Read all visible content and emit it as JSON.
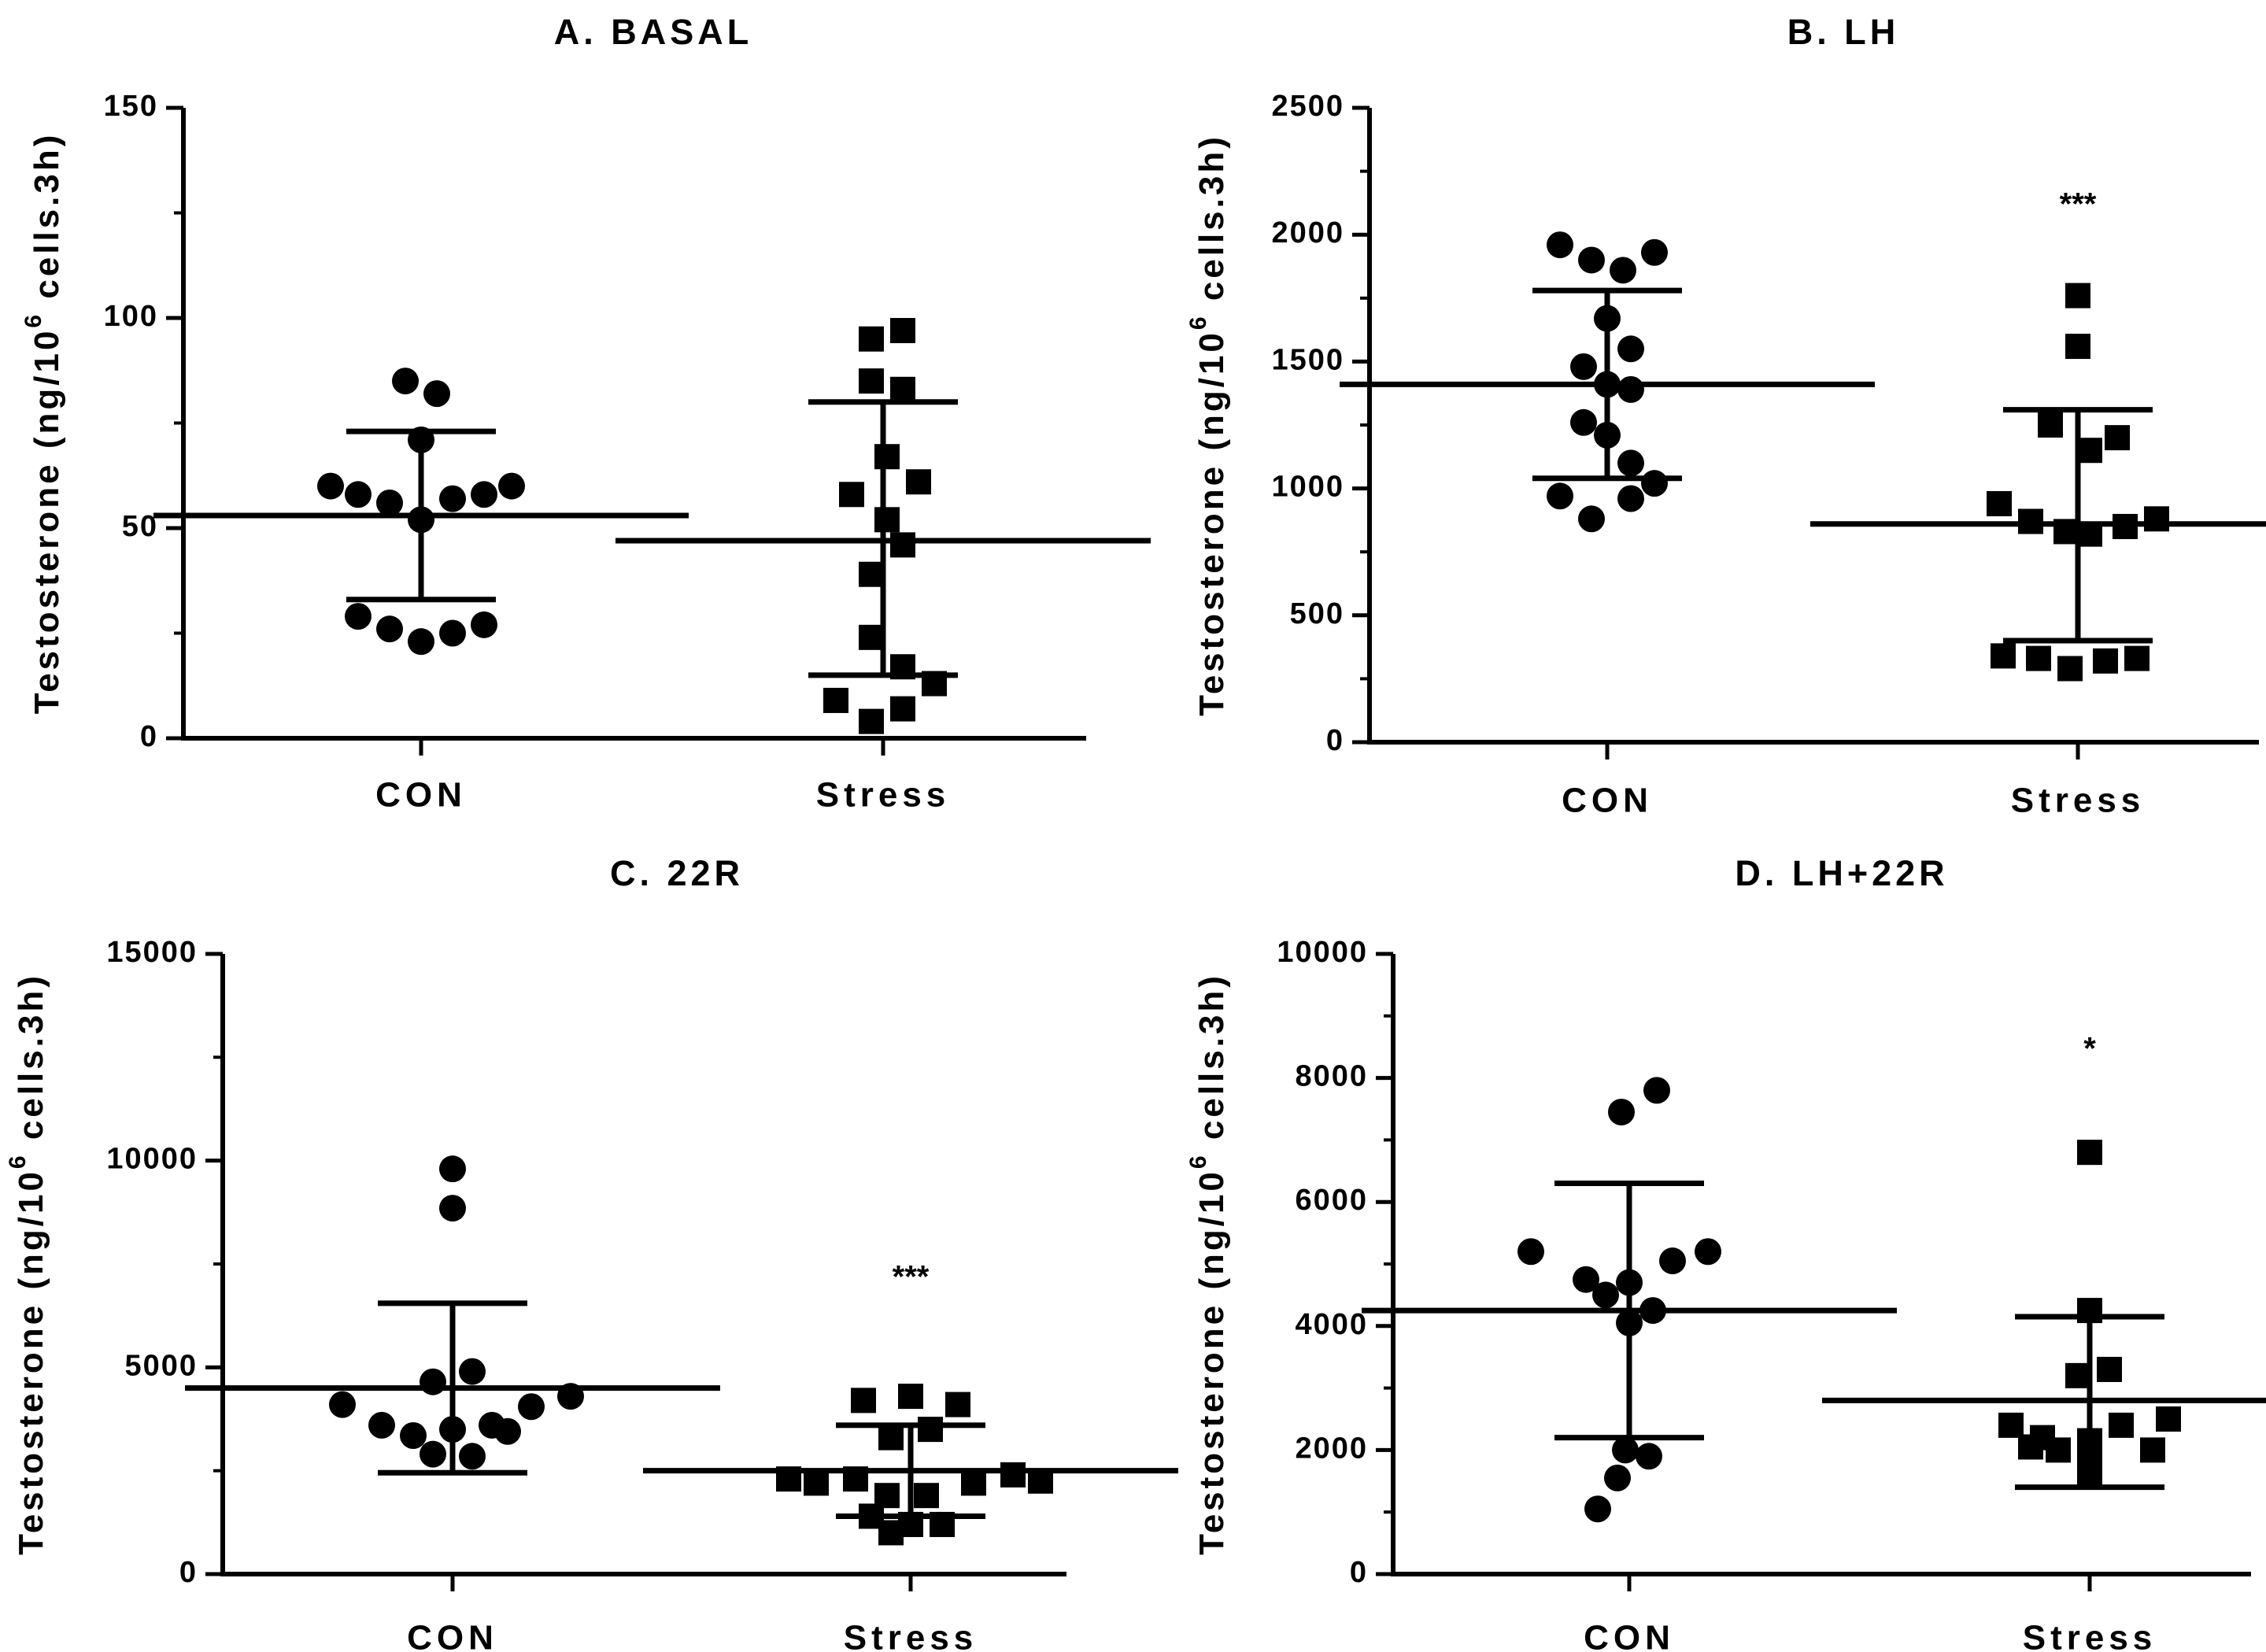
{
  "chart_data": [
    {
      "type": "scatter",
      "title": "A. BASAL",
      "ylabel": "Testosterone (ng/10^6 cells.3h)",
      "ylabel_parts": [
        "Testosterone (ng/10",
        "6",
        " cells.3h)"
      ],
      "categories": [
        "CON",
        "Stress"
      ],
      "ylim": [
        0,
        150
      ],
      "yticks": [
        0,
        50,
        100,
        150
      ],
      "yticklabels": [
        "0",
        "50",
        "100",
        "150"
      ],
      "significance": [
        "",
        ""
      ],
      "series": [
        {
          "name": "CON",
          "marker": "circle",
          "mean": 53,
          "sd": [
            33,
            73
          ],
          "values": [
            85,
            82,
            71,
            60,
            58,
            56,
            52,
            57,
            58,
            60,
            29,
            26,
            23,
            25,
            27
          ],
          "offsets": [
            -0.04,
            0.04,
            0.0,
            -0.23,
            -0.16,
            -0.08,
            0.0,
            0.08,
            0.16,
            0.23,
            -0.16,
            -0.08,
            0.0,
            0.08,
            0.16
          ]
        },
        {
          "name": "Stress",
          "marker": "square",
          "mean": 47,
          "sd": [
            15,
            80
          ],
          "values": [
            97,
            95,
            85,
            83,
            67,
            61,
            58,
            52,
            46,
            39,
            24,
            17,
            13,
            9,
            7,
            4
          ],
          "offsets": [
            0.05,
            -0.03,
            -0.03,
            0.05,
            0.01,
            0.09,
            -0.08,
            0.01,
            0.05,
            -0.03,
            -0.03,
            0.05,
            0.13,
            -0.12,
            0.05,
            -0.03
          ]
        }
      ]
    },
    {
      "type": "scatter",
      "title": "B. LH",
      "ylabel": "Testosterone (ng/10^6 cells.3h)",
      "ylabel_parts": [
        "Testosterone (ng/10",
        "6",
        " cells.3h)"
      ],
      "categories": [
        "CON",
        "Stress"
      ],
      "ylim": [
        0,
        2500
      ],
      "yticks": [
        0,
        500,
        1000,
        1500,
        2000,
        2500
      ],
      "yticklabels": [
        "0",
        "500",
        "1000",
        "1500",
        "2000",
        "2500"
      ],
      "significance": [
        "",
        "***"
      ],
      "series": [
        {
          "name": "CON",
          "marker": "circle",
          "mean": 1410,
          "sd": [
            1040,
            1780
          ],
          "values": [
            1960,
            1900,
            1860,
            1930,
            1670,
            1480,
            1550,
            1410,
            1390,
            1260,
            1210,
            1100,
            1020,
            970,
            960,
            880
          ],
          "offsets": [
            -0.12,
            -0.04,
            0.04,
            0.12,
            0.0,
            -0.06,
            0.06,
            0.0,
            0.06,
            -0.06,
            0.0,
            0.06,
            0.12,
            -0.12,
            0.06,
            -0.04
          ]
        },
        {
          "name": "Stress",
          "marker": "square",
          "mean": 860,
          "sd": [
            400,
            1310
          ],
          "values": [
            1760,
            1560,
            1250,
            1200,
            1150,
            940,
            870,
            830,
            820,
            850,
            880,
            340,
            330,
            290,
            320,
            330
          ],
          "offsets": [
            0.0,
            0.0,
            -0.07,
            0.1,
            0.03,
            -0.2,
            -0.12,
            -0.03,
            0.03,
            0.12,
            0.2,
            -0.19,
            -0.1,
            -0.02,
            0.07,
            0.15
          ]
        }
      ]
    },
    {
      "type": "scatter",
      "title": "C. 22R",
      "ylabel": "Testosterone (ng/10^6 cells.3h)",
      "ylabel_parts": [
        "Testosterone (ng/10",
        "6",
        " cells.3h)"
      ],
      "categories": [
        "CON",
        "Stress"
      ],
      "ylim": [
        0,
        15000
      ],
      "yticks": [
        0,
        5000,
        10000,
        15000
      ],
      "yticklabels": [
        "0",
        "5000",
        "10000",
        "15000"
      ],
      "significance": [
        "",
        "***"
      ],
      "series": [
        {
          "name": "CON",
          "marker": "circle",
          "mean": 4500,
          "sd": [
            2450,
            6550
          ],
          "values": [
            9800,
            8850,
            4900,
            4650,
            4300,
            4100,
            4050,
            3600,
            3500,
            3600,
            3450,
            3350,
            2900,
            2850
          ],
          "offsets": [
            0.0,
            0.0,
            0.05,
            -0.05,
            0.3,
            -0.28,
            0.2,
            -0.18,
            0.0,
            0.1,
            0.14,
            -0.1,
            -0.05,
            0.05
          ]
        },
        {
          "name": "Stress",
          "marker": "square",
          "mean": 2500,
          "sd": [
            1400,
            3600
          ],
          "values": [
            4300,
            4200,
            4100,
            3500,
            3300,
            2300,
            2200,
            2400,
            2200,
            2250,
            2300,
            1900,
            1900,
            1400,
            1200,
            1200,
            1000
          ],
          "offsets": [
            0.0,
            -0.12,
            0.12,
            0.05,
            -0.05,
            -0.31,
            -0.24,
            0.26,
            0.16,
            0.33,
            -0.14,
            -0.06,
            0.04,
            -0.1,
            0.08,
            0.0,
            -0.05
          ]
        }
      ]
    },
    {
      "type": "scatter",
      "title": "D. LH+22R",
      "ylabel": "Testosterone (ng/10^6 cells.3h)",
      "ylabel_parts": [
        "Testosterone (ng/10",
        "6",
        " cells.3h)"
      ],
      "categories": [
        "CON",
        "Stress"
      ],
      "ylim": [
        0,
        10000
      ],
      "yticks": [
        0,
        2000,
        4000,
        6000,
        8000,
        10000
      ],
      "yticklabels": [
        "0",
        "2000",
        "4000",
        "6000",
        "8000",
        "10000"
      ],
      "significance": [
        "",
        "*"
      ],
      "series": [
        {
          "name": "CON",
          "marker": "circle",
          "mean": 4250,
          "sd": [
            2200,
            6300
          ],
          "values": [
            7800,
            7450,
            5200,
            5200,
            5050,
            4750,
            4700,
            4500,
            4250,
            4050,
            2000,
            1900,
            1550,
            1050
          ],
          "offsets": [
            0.07,
            -0.02,
            -0.25,
            0.2,
            0.11,
            -0.11,
            0.0,
            -0.06,
            0.06,
            0.0,
            -0.01,
            0.05,
            -0.03,
            -0.08
          ]
        },
        {
          "name": "Stress",
          "marker": "square",
          "mean": 2800,
          "sd": [
            1400,
            4150
          ],
          "values": [
            6800,
            4250,
            3300,
            3200,
            2500,
            2400,
            2400,
            2200,
            2150,
            2050,
            2000,
            2000,
            1800,
            1600
          ],
          "offsets": [
            0.0,
            0.0,
            0.05,
            -0.03,
            0.2,
            -0.2,
            0.08,
            -0.12,
            0.0,
            -0.15,
            -0.08,
            0.16,
            0.0,
            0.0
          ]
        }
      ]
    }
  ]
}
